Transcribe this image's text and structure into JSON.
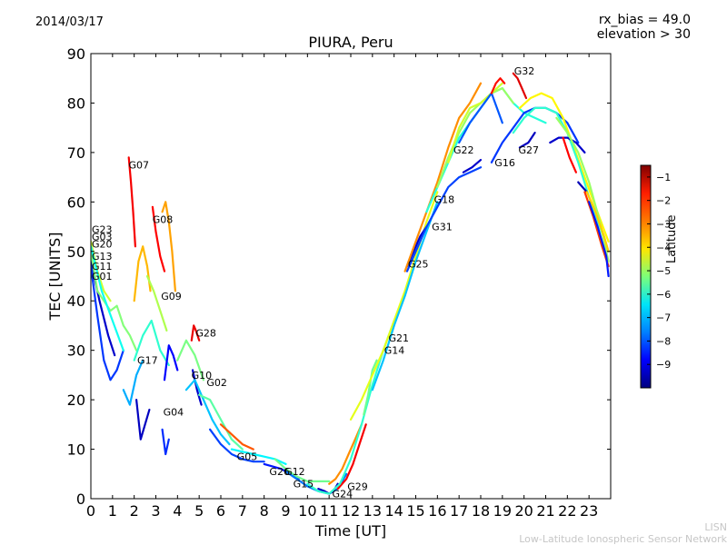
{
  "header": {
    "date": "2014/03/17",
    "rx_bias": "rx_bias = 49.0",
    "elevation": "elevation > 30"
  },
  "footer": {
    "line1": "LISN",
    "line2": "Low-Latitude Ionospheric Sensor Network"
  },
  "chart_data": {
    "type": "scatter",
    "title": "PIURA, Peru",
    "xlabel": "Time [UT]",
    "ylabel": "TEC [UNITS]",
    "xlim": [
      0,
      24
    ],
    "ylim": [
      0,
      90
    ],
    "xticks": [
      0,
      1,
      2,
      3,
      4,
      5,
      6,
      7,
      8,
      9,
      10,
      11,
      12,
      13,
      14,
      15,
      16,
      17,
      18,
      19,
      20,
      21,
      22,
      23
    ],
    "yticks": [
      0,
      10,
      20,
      30,
      40,
      50,
      60,
      70,
      80,
      90
    ],
    "grid": false,
    "colorbar": {
      "label": "Latitude",
      "range": [
        -10,
        -0.5
      ],
      "ticks": [
        -1,
        -2,
        -3,
        -4,
        -5,
        -6,
        -7,
        -8,
        -9
      ],
      "colormap": "jet"
    },
    "satellite_labels": [
      {
        "name": "G07",
        "x": 1.7,
        "y": 67.5
      },
      {
        "name": "G08",
        "x": 2.8,
        "y": 56.5
      },
      {
        "name": "G23",
        "x": 0.0,
        "y": 54.5
      },
      {
        "name": "G03",
        "x": 0.0,
        "y": 53.0
      },
      {
        "name": "G20",
        "x": 0.0,
        "y": 51.5
      },
      {
        "name": "G13",
        "x": 0.0,
        "y": 49.0
      },
      {
        "name": "G11",
        "x": 0.0,
        "y": 47.0
      },
      {
        "name": "G01",
        "x": 0.0,
        "y": 45.0
      },
      {
        "name": "G09",
        "x": 3.2,
        "y": 41.0
      },
      {
        "name": "G28",
        "x": 4.8,
        "y": 33.5
      },
      {
        "name": "G17",
        "x": 2.1,
        "y": 28.0
      },
      {
        "name": "G10",
        "x": 4.6,
        "y": 25.0
      },
      {
        "name": "G02",
        "x": 5.3,
        "y": 23.5
      },
      {
        "name": "G04",
        "x": 3.3,
        "y": 17.5
      },
      {
        "name": "G05",
        "x": 6.7,
        "y": 8.5
      },
      {
        "name": "G26",
        "x": 8.2,
        "y": 5.5
      },
      {
        "name": "G12",
        "x": 8.9,
        "y": 5.5
      },
      {
        "name": "G15",
        "x": 9.3,
        "y": 3.0
      },
      {
        "name": "G29",
        "x": 11.8,
        "y": 2.5
      },
      {
        "name": "G24",
        "x": 11.1,
        "y": 1.0
      },
      {
        "name": "G21",
        "x": 13.7,
        "y": 32.5
      },
      {
        "name": "G14",
        "x": 13.5,
        "y": 30.0
      },
      {
        "name": "G25",
        "x": 14.6,
        "y": 47.5
      },
      {
        "name": "G31",
        "x": 15.7,
        "y": 55.0
      },
      {
        "name": "G18",
        "x": 15.8,
        "y": 60.5
      },
      {
        "name": "G22",
        "x": 16.7,
        "y": 70.5
      },
      {
        "name": "G16",
        "x": 18.6,
        "y": 68.0
      },
      {
        "name": "G27",
        "x": 19.7,
        "y": 70.5
      },
      {
        "name": "G32",
        "x": 19.5,
        "y": 86.5
      }
    ],
    "series": [
      {
        "lat": -9.3,
        "x": [
          0,
          0.4,
          0.8,
          1.1
        ],
        "y": [
          48,
          40,
          33,
          29
        ]
      },
      {
        "lat": -8.3,
        "x": [
          0,
          0.3,
          0.6,
          0.9,
          1.2,
          1.5
        ],
        "y": [
          47,
          37,
          28,
          24,
          26,
          30
        ]
      },
      {
        "lat": -5.2,
        "x": [
          0,
          0.3,
          0.6,
          0.9,
          1.2,
          1.5,
          1.8,
          2.1
        ],
        "y": [
          50,
          42,
          40,
          38,
          39,
          35,
          33,
          30
        ]
      },
      {
        "lat": -4.5,
        "x": [
          0,
          0.3,
          0.6,
          0.9
        ],
        "y": [
          52,
          46,
          42,
          40
        ]
      },
      {
        "lat": -6.3,
        "x": [
          0,
          0.5,
          1.0,
          1.5
        ],
        "y": [
          51,
          42,
          36,
          30
        ]
      },
      {
        "lat": -1.6,
        "x": [
          1.75,
          1.85,
          1.95,
          2.05
        ],
        "y": [
          69,
          64,
          58,
          51
        ]
      },
      {
        "lat": -3.4,
        "x": [
          2.0,
          2.2,
          2.4,
          2.6,
          2.75
        ],
        "y": [
          40,
          48,
          51,
          47,
          42
        ]
      },
      {
        "lat": -1.7,
        "x": [
          2.85,
          3.0,
          3.2,
          3.4
        ],
        "y": [
          59,
          54,
          49,
          46
        ]
      },
      {
        "lat": -3.2,
        "x": [
          3.3,
          3.45,
          3.6,
          3.75,
          3.9
        ],
        "y": [
          58,
          60,
          56,
          50,
          42
        ]
      },
      {
        "lat": -4.8,
        "x": [
          2.6,
          2.9,
          3.2,
          3.5
        ],
        "y": [
          45,
          42,
          38,
          34
        ]
      },
      {
        "lat": -6.0,
        "x": [
          2.0,
          2.4,
          2.8,
          3.2,
          3.6
        ],
        "y": [
          28,
          33,
          36,
          30,
          27
        ]
      },
      {
        "lat": -7.2,
        "x": [
          1.5,
          1.8,
          2.1,
          2.4
        ],
        "y": [
          22,
          19,
          25,
          28
        ]
      },
      {
        "lat": -9.4,
        "x": [
          2.1,
          2.3,
          2.5,
          2.7
        ],
        "y": [
          20,
          12,
          15,
          18
        ]
      },
      {
        "lat": -8.4,
        "x": [
          3.3,
          3.45,
          3.6
        ],
        "y": [
          14,
          9,
          12
        ]
      },
      {
        "lat": -8.8,
        "x": [
          3.4,
          3.6,
          3.8,
          4.0
        ],
        "y": [
          24,
          31,
          29,
          26
        ]
      },
      {
        "lat": -1.5,
        "x": [
          4.65,
          4.75,
          4.85,
          5.0
        ],
        "y": [
          32,
          35,
          34,
          32
        ]
      },
      {
        "lat": -5.3,
        "x": [
          4.0,
          4.4,
          4.8,
          5.2
        ],
        "y": [
          28,
          32,
          29,
          24
        ]
      },
      {
        "lat": -9.3,
        "x": [
          4.7,
          4.9,
          5.1
        ],
        "y": [
          26,
          22,
          19
        ]
      },
      {
        "lat": -7.0,
        "x": [
          4.4,
          4.8,
          5.2,
          5.6,
          6.0,
          6.4
        ],
        "y": [
          22,
          24,
          20,
          16,
          13,
          11
        ]
      },
      {
        "lat": -5.6,
        "x": [
          5.0,
          5.5,
          6.0,
          6.5,
          7.0
        ],
        "y": [
          21,
          20,
          16,
          12,
          10
        ]
      },
      {
        "lat": -2.5,
        "x": [
          6.0,
          6.5,
          7.0,
          7.5
        ],
        "y": [
          15,
          13,
          11,
          10
        ]
      },
      {
        "lat": -8.2,
        "x": [
          5.5,
          6.0,
          6.5,
          7.0,
          7.5,
          8.0
        ],
        "y": [
          14,
          11,
          9,
          8,
          7.5,
          7.5
        ]
      },
      {
        "lat": -6.5,
        "x": [
          6.5,
          7.0,
          7.5,
          8.0,
          8.5,
          9.0
        ],
        "y": [
          10,
          9.5,
          9,
          8.5,
          8,
          7
        ]
      },
      {
        "lat": -8.6,
        "x": [
          8.0,
          8.4,
          8.8,
          9.2,
          9.6
        ],
        "y": [
          7,
          6.5,
          6,
          5,
          4
        ]
      },
      {
        "lat": -5.4,
        "x": [
          8.5,
          9.0,
          9.5,
          10.0,
          10.5,
          11.0
        ],
        "y": [
          8,
          6,
          4.5,
          3.5,
          3.5,
          3.5
        ]
      },
      {
        "lat": -7.7,
        "x": [
          9.0,
          9.5,
          10.0,
          10.5,
          11.0,
          11.4,
          11.8
        ],
        "y": [
          5.5,
          4,
          2.5,
          1.5,
          1,
          2,
          5
        ]
      },
      {
        "lat": -9.4,
        "x": [
          10.5,
          10.8,
          11.0,
          11.2,
          11.4
        ],
        "y": [
          2,
          1.5,
          1,
          1.5,
          3
        ]
      },
      {
        "lat": -3.0,
        "x": [
          11.0,
          11.3,
          11.6,
          11.9,
          12.2,
          12.5
        ],
        "y": [
          3,
          4,
          6,
          9,
          12,
          15
        ]
      },
      {
        "lat": -1.6,
        "x": [
          11.4,
          11.8,
          12.1,
          12.4,
          12.7
        ],
        "y": [
          2,
          4,
          7,
          11,
          15
        ]
      },
      {
        "lat": -6.0,
        "x": [
          10.0,
          10.5,
          11.0,
          11.5,
          12.0,
          12.5,
          13.0,
          13.5,
          14.0
        ],
        "y": [
          3,
          1.5,
          1,
          3,
          8,
          15,
          23,
          30,
          36
        ]
      },
      {
        "lat": -5.4,
        "x": [
          12.6,
          12.8,
          13.0,
          13.2
        ],
        "y": [
          17,
          21,
          26,
          28
        ]
      },
      {
        "lat": -4.3,
        "x": [
          12.0,
          12.5,
          13.0,
          13.5,
          14.0,
          14.5,
          15.0,
          15.5,
          16.0
        ],
        "y": [
          16,
          20,
          25,
          30,
          36,
          42,
          49,
          56,
          62
        ]
      },
      {
        "lat": -7.0,
        "x": [
          13.0,
          13.5,
          14.0,
          14.5,
          15.0,
          15.5,
          16.0
        ],
        "y": [
          22,
          28,
          35,
          41,
          48,
          54,
          60
        ]
      },
      {
        "lat": -9.3,
        "x": [
          14.6,
          14.8,
          15.0,
          15.2,
          15.5
        ],
        "y": [
          47,
          49,
          51,
          53,
          55
        ]
      },
      {
        "lat": -8.2,
        "x": [
          14.6,
          15.0,
          15.5,
          16.0,
          16.5,
          17.0,
          17.5,
          18.0
        ],
        "y": [
          46,
          50,
          55,
          59,
          63,
          65,
          66,
          67
        ]
      },
      {
        "lat": -3.0,
        "x": [
          14.5,
          15.0,
          15.5,
          16.0,
          16.5,
          17.0,
          17.5,
          18.0
        ],
        "y": [
          46,
          52,
          58,
          64,
          71,
          77,
          80,
          84
        ]
      },
      {
        "lat": -6.1,
        "x": [
          15.5,
          16.0,
          16.5,
          17.0,
          17.5,
          18.0,
          18.5,
          19.0,
          19.5,
          20.0,
          20.5,
          21.0
        ],
        "y": [
          58,
          63,
          68,
          73,
          76,
          79,
          82,
          83,
          80,
          78,
          77,
          76
        ]
      },
      {
        "lat": -5.0,
        "x": [
          16.0,
          16.5,
          17.0,
          17.5,
          18.0,
          18.5,
          19.0,
          19.5
        ],
        "y": [
          63,
          69,
          74,
          78,
          80,
          82,
          83,
          80
        ]
      },
      {
        "lat": -4.5,
        "x": [
          16.5,
          17.0,
          17.5,
          18.0,
          18.5,
          19.0
        ],
        "y": [
          68,
          75,
          79,
          80,
          82,
          84
        ]
      },
      {
        "lat": -8.0,
        "x": [
          17.0,
          17.5,
          18.0,
          18.5,
          19.0
        ],
        "y": [
          72,
          76,
          79,
          82,
          76
        ]
      },
      {
        "lat": -9.3,
        "x": [
          17.2,
          17.6,
          18.0
        ],
        "y": [
          66,
          67,
          68.5
        ]
      },
      {
        "lat": -8.3,
        "x": [
          18.5,
          19.0,
          19.5,
          20.0,
          20.5,
          21.0,
          21.5,
          22.0,
          22.5
        ],
        "y": [
          68,
          72,
          75,
          78,
          79,
          79,
          78,
          76,
          72
        ]
      },
      {
        "lat": -1.8,
        "x": [
          18.5,
          18.7,
          18.9,
          19.1
        ],
        "y": [
          82,
          84,
          85,
          84
        ]
      },
      {
        "lat": -1.4,
        "x": [
          19.5,
          19.7,
          19.9,
          20.1
        ],
        "y": [
          86,
          85,
          83,
          81
        ]
      },
      {
        "lat": -4.0,
        "x": [
          19.8,
          20.3,
          20.8,
          21.3,
          21.8,
          22.3,
          22.8,
          23.3,
          23.9
        ],
        "y": [
          79,
          81,
          82,
          81,
          77,
          71,
          65,
          59,
          52
        ]
      },
      {
        "lat": -6.0,
        "x": [
          19.5,
          20.0,
          20.5,
          21.0,
          21.5,
          22.0,
          22.5,
          23.0,
          23.5,
          23.9
        ],
        "y": [
          74,
          77,
          79,
          79,
          78,
          74,
          68,
          61,
          55,
          50
        ]
      },
      {
        "lat": -9.4,
        "x": [
          19.8,
          20.2,
          20.5
        ],
        "y": [
          71,
          72,
          74
        ]
      },
      {
        "lat": -9.3,
        "x": [
          21.2,
          21.6,
          22.0,
          22.4,
          22.8
        ],
        "y": [
          72,
          73,
          73,
          72,
          70
        ]
      },
      {
        "lat": -5.0,
        "x": [
          21.5,
          22.0,
          22.5,
          23.0,
          23.5,
          23.9
        ],
        "y": [
          77,
          74,
          70,
          64,
          56,
          48
        ]
      },
      {
        "lat": -1.7,
        "x": [
          21.8,
          22.1,
          22.4
        ],
        "y": [
          73,
          69,
          66
        ]
      },
      {
        "lat": -9.5,
        "x": [
          22.5,
          22.7,
          22.9
        ],
        "y": [
          64,
          63,
          62
        ]
      },
      {
        "lat": -3.6,
        "x": [
          22.9,
          23.3,
          23.7,
          23.9
        ],
        "y": [
          62,
          58,
          53,
          50
        ]
      },
      {
        "lat": -2.2,
        "x": [
          22.8,
          23.2,
          23.6,
          23.9
        ],
        "y": [
          62,
          57,
          51,
          47
        ]
      },
      {
        "lat": -8.6,
        "x": [
          23.0,
          23.4,
          23.8,
          23.9
        ],
        "y": [
          60,
          55,
          49,
          45
        ]
      }
    ]
  }
}
